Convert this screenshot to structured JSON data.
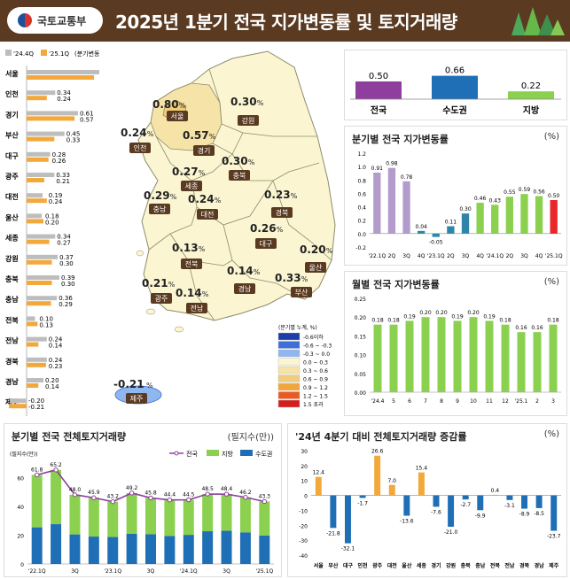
{
  "header": {
    "logo_text": "국토교통부",
    "title": "2025년 1분기 전국 지가변동률 및 토지거래량"
  },
  "colors": {
    "nation": "#8e3f9e",
    "capital": "#1f6fb6",
    "local": "#8bd04f",
    "prev": "#bdbdbd",
    "cur": "#f3a83b",
    "highlight": "#e8262b",
    "early": "#b39ccc",
    "teal": "#2d86a8"
  },
  "chart_data": [
    {
      "id": "regional",
      "type": "bar",
      "legend": [
        "'24.4Q",
        "'25.1Q"
      ],
      "unit_label": "(분기변동률, %)",
      "categories": [
        "서울",
        "인천",
        "경기",
        "부산",
        "대구",
        "광주",
        "대전",
        "울산",
        "세종",
        "강원",
        "충북",
        "충남",
        "전북",
        "전남",
        "경북",
        "경남",
        "제주"
      ],
      "series": [
        {
          "name": "'24.4Q",
          "values": [
            0.9,
            0.34,
            0.61,
            0.45,
            0.28,
            0.33,
            0.19,
            0.18,
            0.34,
            0.37,
            0.39,
            0.36,
            0.1,
            0.24,
            0.24,
            0.2,
            -0.2
          ]
        },
        {
          "name": "'25.1Q",
          "values": [
            0.8,
            0.24,
            0.57,
            0.33,
            0.26,
            0.21,
            0.24,
            0.2,
            0.27,
            0.3,
            0.3,
            0.29,
            0.13,
            0.14,
            0.23,
            0.14,
            -0.21
          ]
        }
      ]
    },
    {
      "id": "map",
      "type": "table",
      "items": [
        {
          "region": "서울",
          "value": "0.80"
        },
        {
          "region": "강원",
          "value": "0.30"
        },
        {
          "region": "인천",
          "value": "0.24"
        },
        {
          "region": "경기",
          "value": "0.57"
        },
        {
          "region": "세종",
          "value": "0.27"
        },
        {
          "region": "충북",
          "value": "0.30"
        },
        {
          "region": "충남",
          "value": "0.29"
        },
        {
          "region": "대전",
          "value": "0.24"
        },
        {
          "region": "경북",
          "value": "0.23"
        },
        {
          "region": "대구",
          "value": "0.26"
        },
        {
          "region": "전북",
          "value": "0.13"
        },
        {
          "region": "울산",
          "value": "0.20"
        },
        {
          "region": "광주",
          "value": "0.21"
        },
        {
          "region": "전남",
          "value": "0.14"
        },
        {
          "region": "경남",
          "value": "0.14"
        },
        {
          "region": "부산",
          "value": "0.33"
        },
        {
          "region": "제주",
          "value": "-0.21"
        }
      ],
      "unit": "%",
      "legend_title": "(분기별 누계, %)",
      "legend": [
        {
          "label": "-0.6이하",
          "color": "#1d3ea8"
        },
        {
          "label": "-0.6 ~ -0.3",
          "color": "#3d6fd6"
        },
        {
          "label": "-0.3 ~ 0.0",
          "color": "#8fb6ee"
        },
        {
          "label": "0.0 ~ 0.3",
          "color": "#fbf5d2"
        },
        {
          "label": "0.3 ~ 0.6",
          "color": "#f6e3a8"
        },
        {
          "label": "0.6 ~ 0.9",
          "color": "#f1cd7a"
        },
        {
          "label": "0.9 ~ 1.2",
          "color": "#f1a53a"
        },
        {
          "label": "1.2 ~ 1.5",
          "color": "#ea5b24"
        },
        {
          "label": "1.5 초과",
          "color": "#d3201f"
        }
      ]
    },
    {
      "id": "summary",
      "type": "bar",
      "categories": [
        "전국",
        "수도권",
        "지방"
      ],
      "values": [
        0.5,
        0.66,
        0.22
      ],
      "labels": [
        "0.50",
        "0.66",
        "0.22"
      ]
    },
    {
      "id": "quarterly",
      "type": "bar",
      "title": "분기별 전국 지가변동률",
      "unit": "(%)",
      "values": [
        0.91,
        0.98,
        0.78,
        0.04,
        -0.05,
        0.11,
        0.3,
        0.46,
        0.43,
        0.55,
        0.59,
        0.56,
        0.5
      ],
      "labels": [
        "0.91",
        "0.98",
        "0.78",
        "0.04",
        "-0.05",
        "0.11",
        "0.30",
        "0.46",
        "0.43",
        "0.55",
        "0.59",
        "0.56",
        "0.50"
      ],
      "tick_labels": [
        "'22.1Q",
        "2Q",
        "3Q",
        "4Q",
        "'23.1Q",
        "2Q",
        "3Q",
        "4Q",
        "'24.1Q",
        "2Q",
        "3Q",
        "4Q",
        "'25.1Q"
      ],
      "yticks": [
        "1.2",
        "1.0",
        "0.8",
        "0.6",
        "0.4",
        "0.2",
        "0.0",
        "-0.2"
      ],
      "ylim": [
        -0.2,
        1.2
      ]
    },
    {
      "id": "monthly",
      "type": "bar",
      "title": "월별 전국 지가변동률",
      "unit": "(%)",
      "values": [
        0.18,
        0.18,
        0.19,
        0.2,
        0.2,
        0.19,
        0.2,
        0.19,
        0.18,
        0.16,
        0.16,
        0.18
      ],
      "labels": [
        "0.18",
        "0.18",
        "0.19",
        "0.20",
        "0.20",
        "0.19",
        "0.20",
        "0.19",
        "0.18",
        "0.16",
        "0.16",
        "0.18"
      ],
      "tick_labels": [
        "'24.4",
        "5",
        "6",
        "7",
        "8",
        "9",
        "10",
        "11",
        "12",
        "'25.1",
        "2",
        "3"
      ],
      "yticks": [
        "0.25",
        "0.20",
        "0.15",
        "0.10",
        "0.05",
        "0.00"
      ],
      "ylim": [
        0,
        0.25
      ]
    },
    {
      "id": "volume",
      "type": "bar",
      "title": "분기별 전국 전체토지거래량",
      "unit": "(필지수(만))",
      "axis_label": "(필지수(만))",
      "legend": [
        "전국",
        "지방",
        "수도권"
      ],
      "capital": [
        25.4,
        27.6,
        20.5,
        19.0,
        18.7,
        21.0,
        20.6,
        19.4,
        20.2,
        22.7,
        23.0,
        21.9,
        19.7
      ],
      "local": [
        36.4,
        37.6,
        27.5,
        26.9,
        24.5,
        28.2,
        25.2,
        25.0,
        24.3,
        25.8,
        25.4,
        24.3,
        23.6
      ],
      "total": [
        61.8,
        65.2,
        48.0,
        45.9,
        43.2,
        49.2,
        45.8,
        44.4,
        44.5,
        48.5,
        48.4,
        46.2,
        43.3
      ],
      "total_labels": [
        "61.8",
        "65.2",
        "48.0",
        "45.9",
        "43.2",
        "49.2",
        "45.8",
        "44.4",
        "44.5",
        "48.5",
        "48.4",
        "46.2",
        "43.3"
      ],
      "tick_labels": [
        "'22.1Q",
        "",
        "3Q",
        "",
        "'23.1Q",
        "",
        "3Q",
        "",
        "'24.1Q",
        "",
        "3Q",
        "",
        "'25.1Q"
      ],
      "yticks": [
        "60",
        "40",
        "20",
        "0"
      ],
      "ylim": [
        0,
        70
      ]
    },
    {
      "id": "change",
      "type": "bar",
      "title": "'24년 4분기 대비 전체토지거래량 증감률",
      "unit": "(%)",
      "categories": [
        "서울",
        "부산",
        "대구",
        "인천",
        "광주",
        "대전",
        "울산",
        "세종",
        "경기",
        "강원",
        "충북",
        "충남",
        "전북",
        "전남",
        "경북",
        "경남",
        "제주"
      ],
      "values": [
        12.4,
        -21.8,
        -32.1,
        -1.7,
        26.6,
        7.0,
        -13.6,
        15.4,
        -7.6,
        -21.0,
        -2.7,
        -9.9,
        0.4,
        -3.1,
        -8.9,
        -8.5,
        -23.7
      ],
      "labels": [
        "12.4",
        "-21.8",
        "-32.1",
        "-1.7",
        "26.6",
        "7.0",
        "-13.6",
        "15.4",
        "-7.6",
        "-21.0",
        "-2.7",
        "-9.9",
        "0.4",
        "-3.1",
        "-8.9",
        "-8.5",
        "-23.7"
      ],
      "yticks": [
        "30",
        "20",
        "10",
        "0",
        "-10",
        "-20",
        "-30",
        "-40"
      ],
      "ylim": [
        -40,
        30
      ]
    }
  ]
}
